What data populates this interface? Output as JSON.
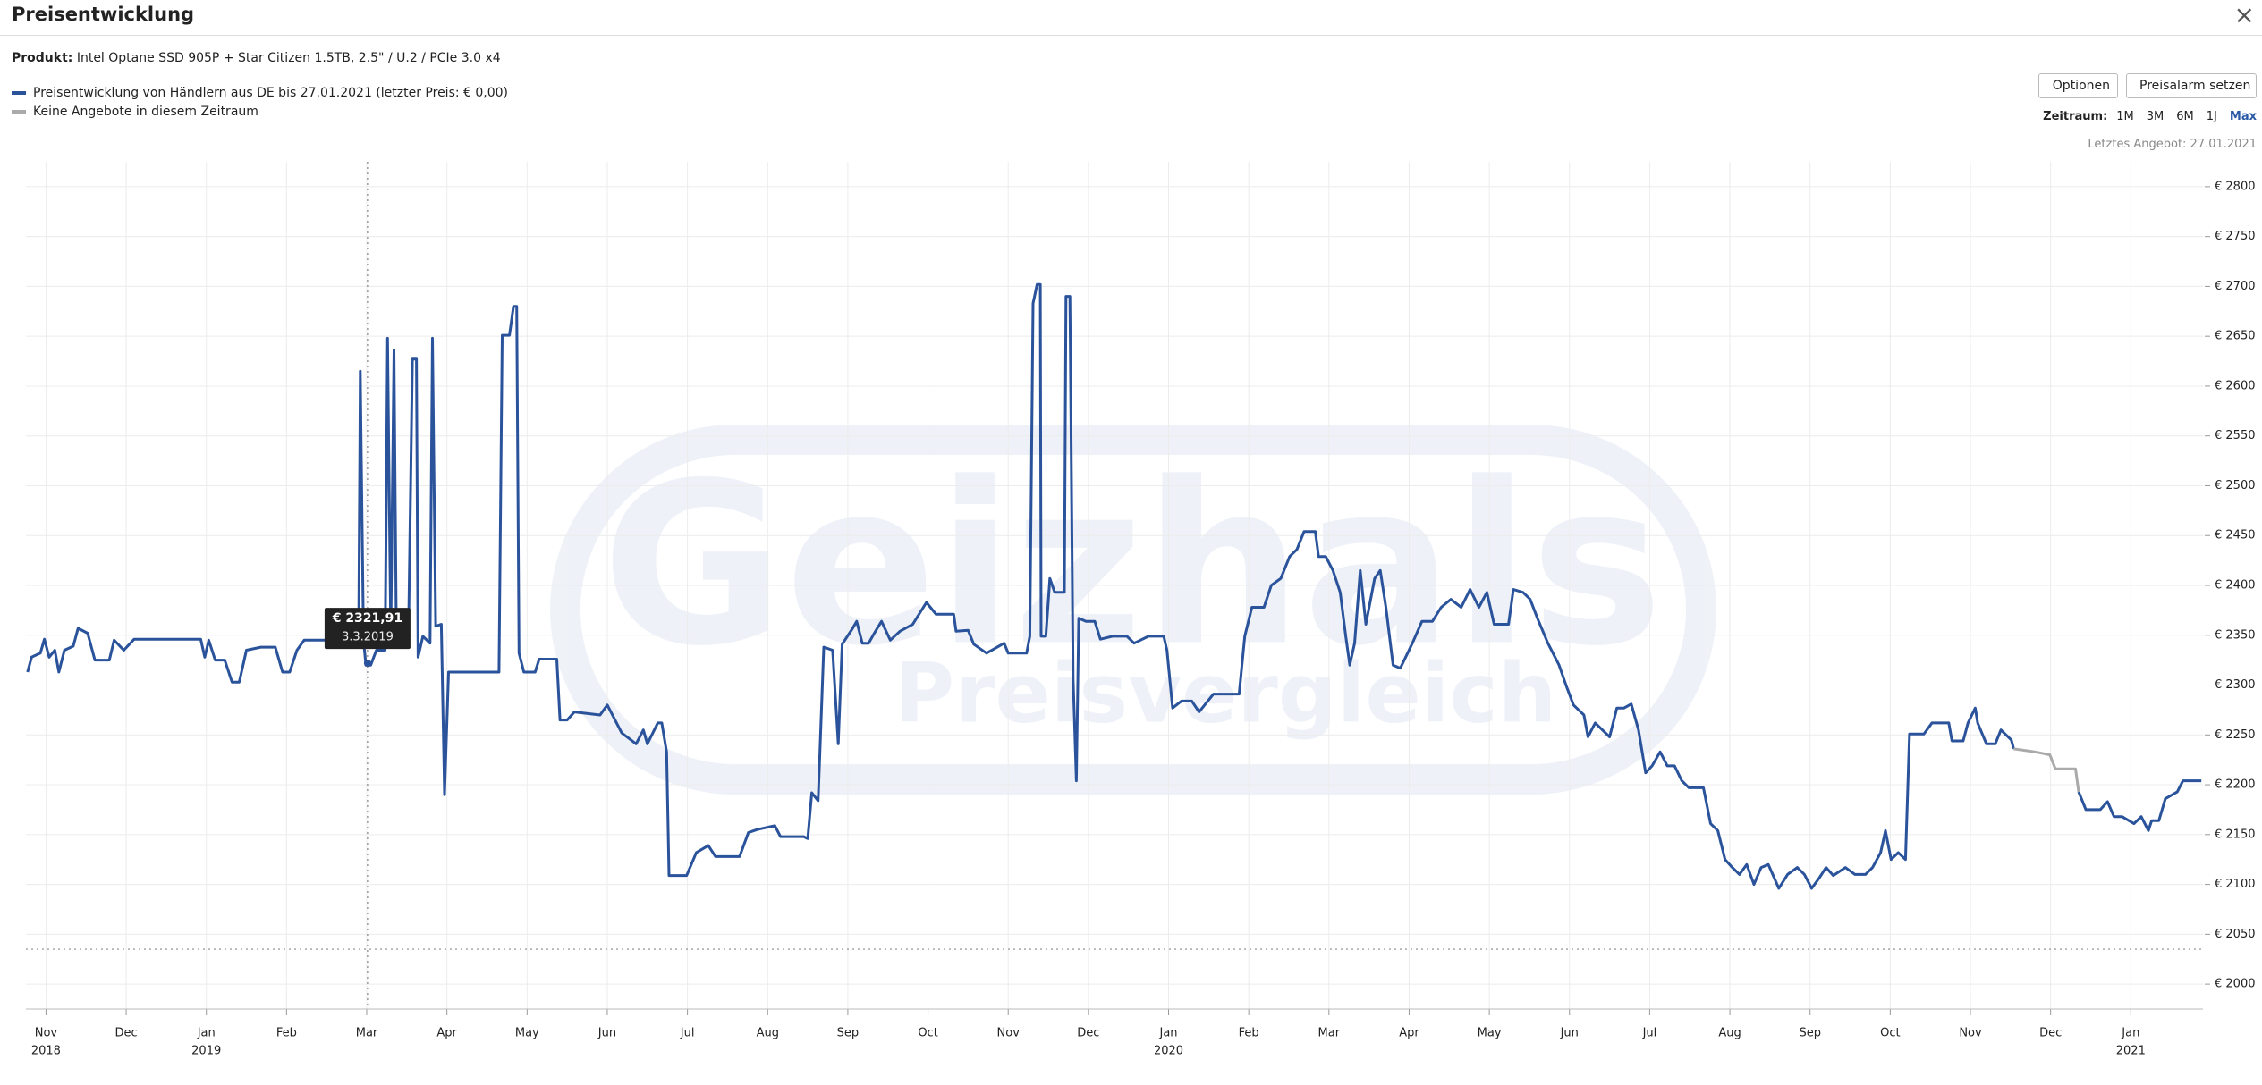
{
  "header": {
    "title": "Preisentwicklung",
    "close": "×"
  },
  "product": {
    "label": "Produkt:",
    "name": "Intel Optane SSD 905P + Star Citizen 1.5TB, 2.5\" / U.2 / PCIe 3.0 x4"
  },
  "buttons": {
    "options": "Optionen",
    "alarm": "Preisalarm setzen"
  },
  "zeitraum": {
    "label": "Zeitraum:",
    "options": [
      "1M",
      "3M",
      "6M",
      "1J",
      "Max"
    ],
    "selected": 4
  },
  "last_offer": "Letztes Angebot: 27.01.2021",
  "chart_data": {
    "type": "line",
    "watermark": {
      "brand": "Geizhals",
      "tagline": "Preisvergleich"
    },
    "xlim": [
      -0.25,
      26.9
    ],
    "ylim": [
      1975,
      2825
    ],
    "grid": true,
    "xticks": [
      {
        "value": 0,
        "label": "Nov"
      },
      {
        "value": 1,
        "label": "Dec"
      },
      {
        "value": 2,
        "label": "Jan"
      },
      {
        "value": 3,
        "label": "Feb"
      },
      {
        "value": 4,
        "label": "Mar"
      },
      {
        "value": 5,
        "label": "Apr"
      },
      {
        "value": 6,
        "label": "May"
      },
      {
        "value": 7,
        "label": "Jun"
      },
      {
        "value": 8,
        "label": "Jul"
      },
      {
        "value": 9,
        "label": "Aug"
      },
      {
        "value": 10,
        "label": "Sep"
      },
      {
        "value": 11,
        "label": "Oct"
      },
      {
        "value": 12,
        "label": "Nov"
      },
      {
        "value": 13,
        "label": "Dec"
      },
      {
        "value": 14,
        "label": "Jan"
      },
      {
        "value": 15,
        "label": "Feb"
      },
      {
        "value": 16,
        "label": "Mar"
      },
      {
        "value": 17,
        "label": "Apr"
      },
      {
        "value": 18,
        "label": "May"
      },
      {
        "value": 19,
        "label": "Jun"
      },
      {
        "value": 20,
        "label": "Jul"
      },
      {
        "value": 21,
        "label": "Aug"
      },
      {
        "value": 22,
        "label": "Sep"
      },
      {
        "value": 23,
        "label": "Oct"
      },
      {
        "value": 24,
        "label": "Nov"
      },
      {
        "value": 25,
        "label": "Dec"
      },
      {
        "value": 26,
        "label": "Jan"
      }
    ],
    "year_labels": [
      {
        "value": 0,
        "label": "2018"
      },
      {
        "value": 2,
        "label": "2019"
      },
      {
        "value": 14,
        "label": "2020"
      },
      {
        "value": 26,
        "label": "2021"
      }
    ],
    "yticks": [
      {
        "value": 2800,
        "label": "€ 2800"
      },
      {
        "value": 2750,
        "label": "€ 2750"
      },
      {
        "value": 2700,
        "label": "€ 2700"
      },
      {
        "value": 2650,
        "label": "€ 2650"
      },
      {
        "value": 2600,
        "label": "€ 2600"
      },
      {
        "value": 2550,
        "label": "€ 2550"
      },
      {
        "value": 2500,
        "label": "€ 2500"
      },
      {
        "value": 2450,
        "label": "€ 2450"
      },
      {
        "value": 2400,
        "label": "€ 2400"
      },
      {
        "value": 2350,
        "label": "€ 2350"
      },
      {
        "value": 2300,
        "label": "€ 2300"
      },
      {
        "value": 2250,
        "label": "€ 2250"
      },
      {
        "value": 2200,
        "label": "€ 2200"
      },
      {
        "value": 2150,
        "label": "€ 2150"
      },
      {
        "value": 2100,
        "label": "€ 2100"
      },
      {
        "value": 2050,
        "label": "€ 2050"
      },
      {
        "value": 2000,
        "label": "€ 2000"
      }
    ],
    "reference_line": 2035,
    "tooltip": {
      "x": 4.01,
      "value": {
        "value": 2321.91,
        "label": "€ 2321,91"
      },
      "date": "3.3.2019"
    },
    "series": [
      {
        "name": "Preisentwicklung von Händlern aus DE bis 27.01.2021 (letzter Preis: € 0,00)",
        "color": "#2a539b",
        "x": [
          -0.23,
          -0.18,
          -0.07,
          -0.02,
          0.04,
          0.11,
          0.16,
          0.23,
          0.34,
          0.4,
          0.52,
          0.61,
          0.79,
          0.85,
          0.97,
          1.1,
          1.93,
          1.98,
          2.03,
          2.11,
          2.23,
          2.32,
          2.41,
          2.5,
          2.68,
          2.86,
          2.95,
          3.04,
          3.13,
          3.22,
          3.49,
          3.9,
          3.92,
          3.96,
          3.99,
          4.05,
          4.12,
          4.23,
          4.26,
          4.3,
          4.34,
          4.37,
          4.52,
          4.57,
          4.62,
          4.64,
          4.7,
          4.79,
          4.82,
          4.86,
          4.93,
          4.97,
          5.02,
          5.65,
          5.69,
          5.78,
          5.83,
          5.87,
          5.9,
          5.96,
          6.1,
          6.15,
          6.37,
          6.41,
          6.5,
          6.59,
          6.91,
          7.0,
          7.18,
          7.36,
          7.45,
          7.5,
          7.63,
          7.68,
          7.74,
          7.77,
          7.99,
          8.11,
          8.26,
          8.35,
          8.65,
          8.76,
          8.87,
          9.09,
          9.16,
          9.45,
          9.5,
          9.55,
          9.63,
          9.7,
          9.81,
          9.88,
          9.93,
          10.06,
          10.11,
          10.18,
          10.26,
          10.33,
          10.42,
          10.53,
          10.65,
          10.81,
          10.98,
          11.1,
          11.32,
          11.35,
          11.5,
          11.57,
          11.73,
          11.95,
          12.0,
          12.23,
          12.27,
          12.31,
          12.36,
          12.4,
          12.41,
          12.47,
          12.52,
          12.58,
          12.7,
          12.72,
          12.77,
          12.81,
          12.85,
          12.88,
          12.97,
          13.08,
          13.15,
          13.3,
          13.48,
          13.57,
          13.75,
          13.94,
          13.98,
          14.05,
          14.16,
          14.29,
          14.38,
          14.56,
          14.88,
          14.95,
          15.04,
          15.19,
          15.28,
          15.4,
          15.51,
          15.6,
          15.69,
          15.83,
          15.87,
          15.96,
          16.05,
          16.14,
          16.21,
          16.26,
          16.32,
          16.39,
          16.46,
          16.57,
          16.64,
          16.71,
          16.8,
          16.89,
          17.04,
          17.16,
          17.29,
          17.4,
          17.52,
          17.65,
          17.76,
          17.87,
          17.97,
          18.06,
          18.24,
          18.3,
          18.42,
          18.51,
          18.6,
          18.73,
          18.87,
          18.96,
          19.05,
          19.18,
          19.23,
          19.32,
          19.41,
          19.5,
          19.59,
          19.68,
          19.77,
          19.86,
          19.95,
          20.03,
          20.13,
          20.22,
          20.31,
          20.4,
          20.49,
          20.67,
          20.76,
          20.85,
          20.94,
          21.03,
          21.12,
          21.21,
          21.3,
          21.39,
          21.48,
          21.61,
          21.72,
          21.84,
          21.93,
          22.02,
          22.11,
          22.2,
          22.29,
          22.44,
          22.56,
          22.69,
          22.78,
          22.88,
          22.94,
          23.01,
          23.1,
          23.19,
          23.24,
          23.42,
          23.52,
          23.73,
          23.77,
          23.91,
          23.97,
          24.06,
          24.09,
          24.2,
          24.31,
          24.38,
          24.51,
          24.54,
          24.81,
          25.35,
          25.44,
          25.62,
          25.71,
          25.79,
          25.89,
          26.04,
          26.13,
          26.22,
          26.26,
          26.35,
          26.43,
          26.58,
          26.65,
          26.88
        ],
        "values": [
          2313,
          2328,
          2332,
          2346,
          2328,
          2335,
          2313,
          2335,
          2339,
          2357,
          2352,
          2325,
          2325,
          2345,
          2335,
          2346,
          2346,
          2328,
          2345,
          2325,
          2325,
          2303,
          2303,
          2335,
          2338,
          2338,
          2313,
          2313,
          2335,
          2345,
          2345,
          2345,
          2615,
          2345,
          2320,
          2320,
          2335,
          2335,
          2648,
          2349,
          2636,
          2342,
          2342,
          2627,
          2627,
          2328,
          2349,
          2342,
          2648,
          2359,
          2361,
          2190,
          2313,
          2313,
          2651,
          2651,
          2680,
          2680,
          2332,
          2313,
          2313,
          2326,
          2326,
          2265,
          2265,
          2273,
          2270,
          2280,
          2252,
          2241,
          2255,
          2241,
          2262,
          2262,
          2233,
          2109,
          2109,
          2132,
          2139,
          2128,
          2128,
          2152,
          2155,
          2159,
          2148,
          2148,
          2146,
          2192,
          2184,
          2338,
          2335,
          2241,
          2341,
          2357,
          2364,
          2342,
          2342,
          2352,
          2364,
          2345,
          2354,
          2361,
          2383,
          2371,
          2371,
          2354,
          2355,
          2341,
          2332,
          2342,
          2332,
          2332,
          2349,
          2683,
          2702,
          2702,
          2349,
          2349,
          2407,
          2393,
          2393,
          2690,
          2690,
          2306,
          2204,
          2367,
          2364,
          2364,
          2346,
          2349,
          2349,
          2342,
          2349,
          2349,
          2335,
          2277,
          2284,
          2284,
          2273,
          2291,
          2291,
          2349,
          2378,
          2378,
          2400,
          2407,
          2429,
          2436,
          2454,
          2454,
          2429,
          2429,
          2415,
          2393,
          2349,
          2320,
          2342,
          2415,
          2361,
          2407,
          2415,
          2378,
          2320,
          2317,
          2342,
          2364,
          2364,
          2378,
          2386,
          2378,
          2396,
          2378,
          2393,
          2361,
          2361,
          2396,
          2393,
          2386,
          2367,
          2342,
          2320,
          2299,
          2280,
          2270,
          2248,
          2262,
          2255,
          2248,
          2277,
          2277,
          2281,
          2255,
          2212,
          2219,
          2233,
          2219,
          2219,
          2204,
          2197,
          2197,
          2161,
          2154,
          2125,
          2117,
          2110,
          2120,
          2100,
          2117,
          2120,
          2096,
          2110,
          2117,
          2110,
          2096,
          2106,
          2117,
          2109,
          2117,
          2110,
          2110,
          2117,
          2132,
          2154,
          2125,
          2132,
          2125,
          2251,
          2251,
          2262,
          2262,
          2244,
          2244,
          2262,
          2277,
          2262,
          2241,
          2241,
          2255,
          2245,
          2236,
          null,
          2193,
          2175,
          2175,
          2183,
          2168,
          2168,
          2161,
          2168,
          2154,
          2164,
          2164,
          2186,
          2193,
          2204,
          2204
        ]
      },
      {
        "name": "Keine Angebote in diesem Zeitraum",
        "color": "#aaaaaa",
        "x": [
          24.54,
          24.81,
          24.99,
          25.06,
          25.31,
          25.35
        ],
        "values": [
          2236,
          2233,
          2230,
          2216,
          2216,
          2193
        ]
      }
    ]
  }
}
